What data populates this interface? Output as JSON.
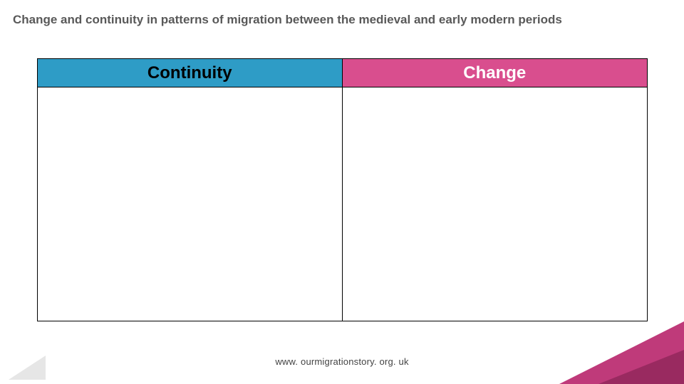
{
  "title": "Change and continuity in patterns of migration between the medieval and early modern periods",
  "footer_url": "www. ourmigrationstory. org. uk",
  "comparison_table": {
    "type": "table",
    "columns": [
      {
        "label": "Continuity",
        "bg_color": "#2e9cc6",
        "text_color": "#000000"
      },
      {
        "label": "Change",
        "bg_color": "#d94e8e",
        "text_color": "#ffffff"
      }
    ],
    "rows": [
      [
        "",
        ""
      ]
    ],
    "header_fontsize": 24,
    "header_fontweight": 700,
    "border_color": "#000000",
    "body_bg": "#ffffff"
  },
  "decor": {
    "bottom_left_triangle_color": "#e6e6e6",
    "bottom_right_triangle_outer": "#bf3a7a",
    "bottom_right_triangle_inner": "#992a60"
  }
}
